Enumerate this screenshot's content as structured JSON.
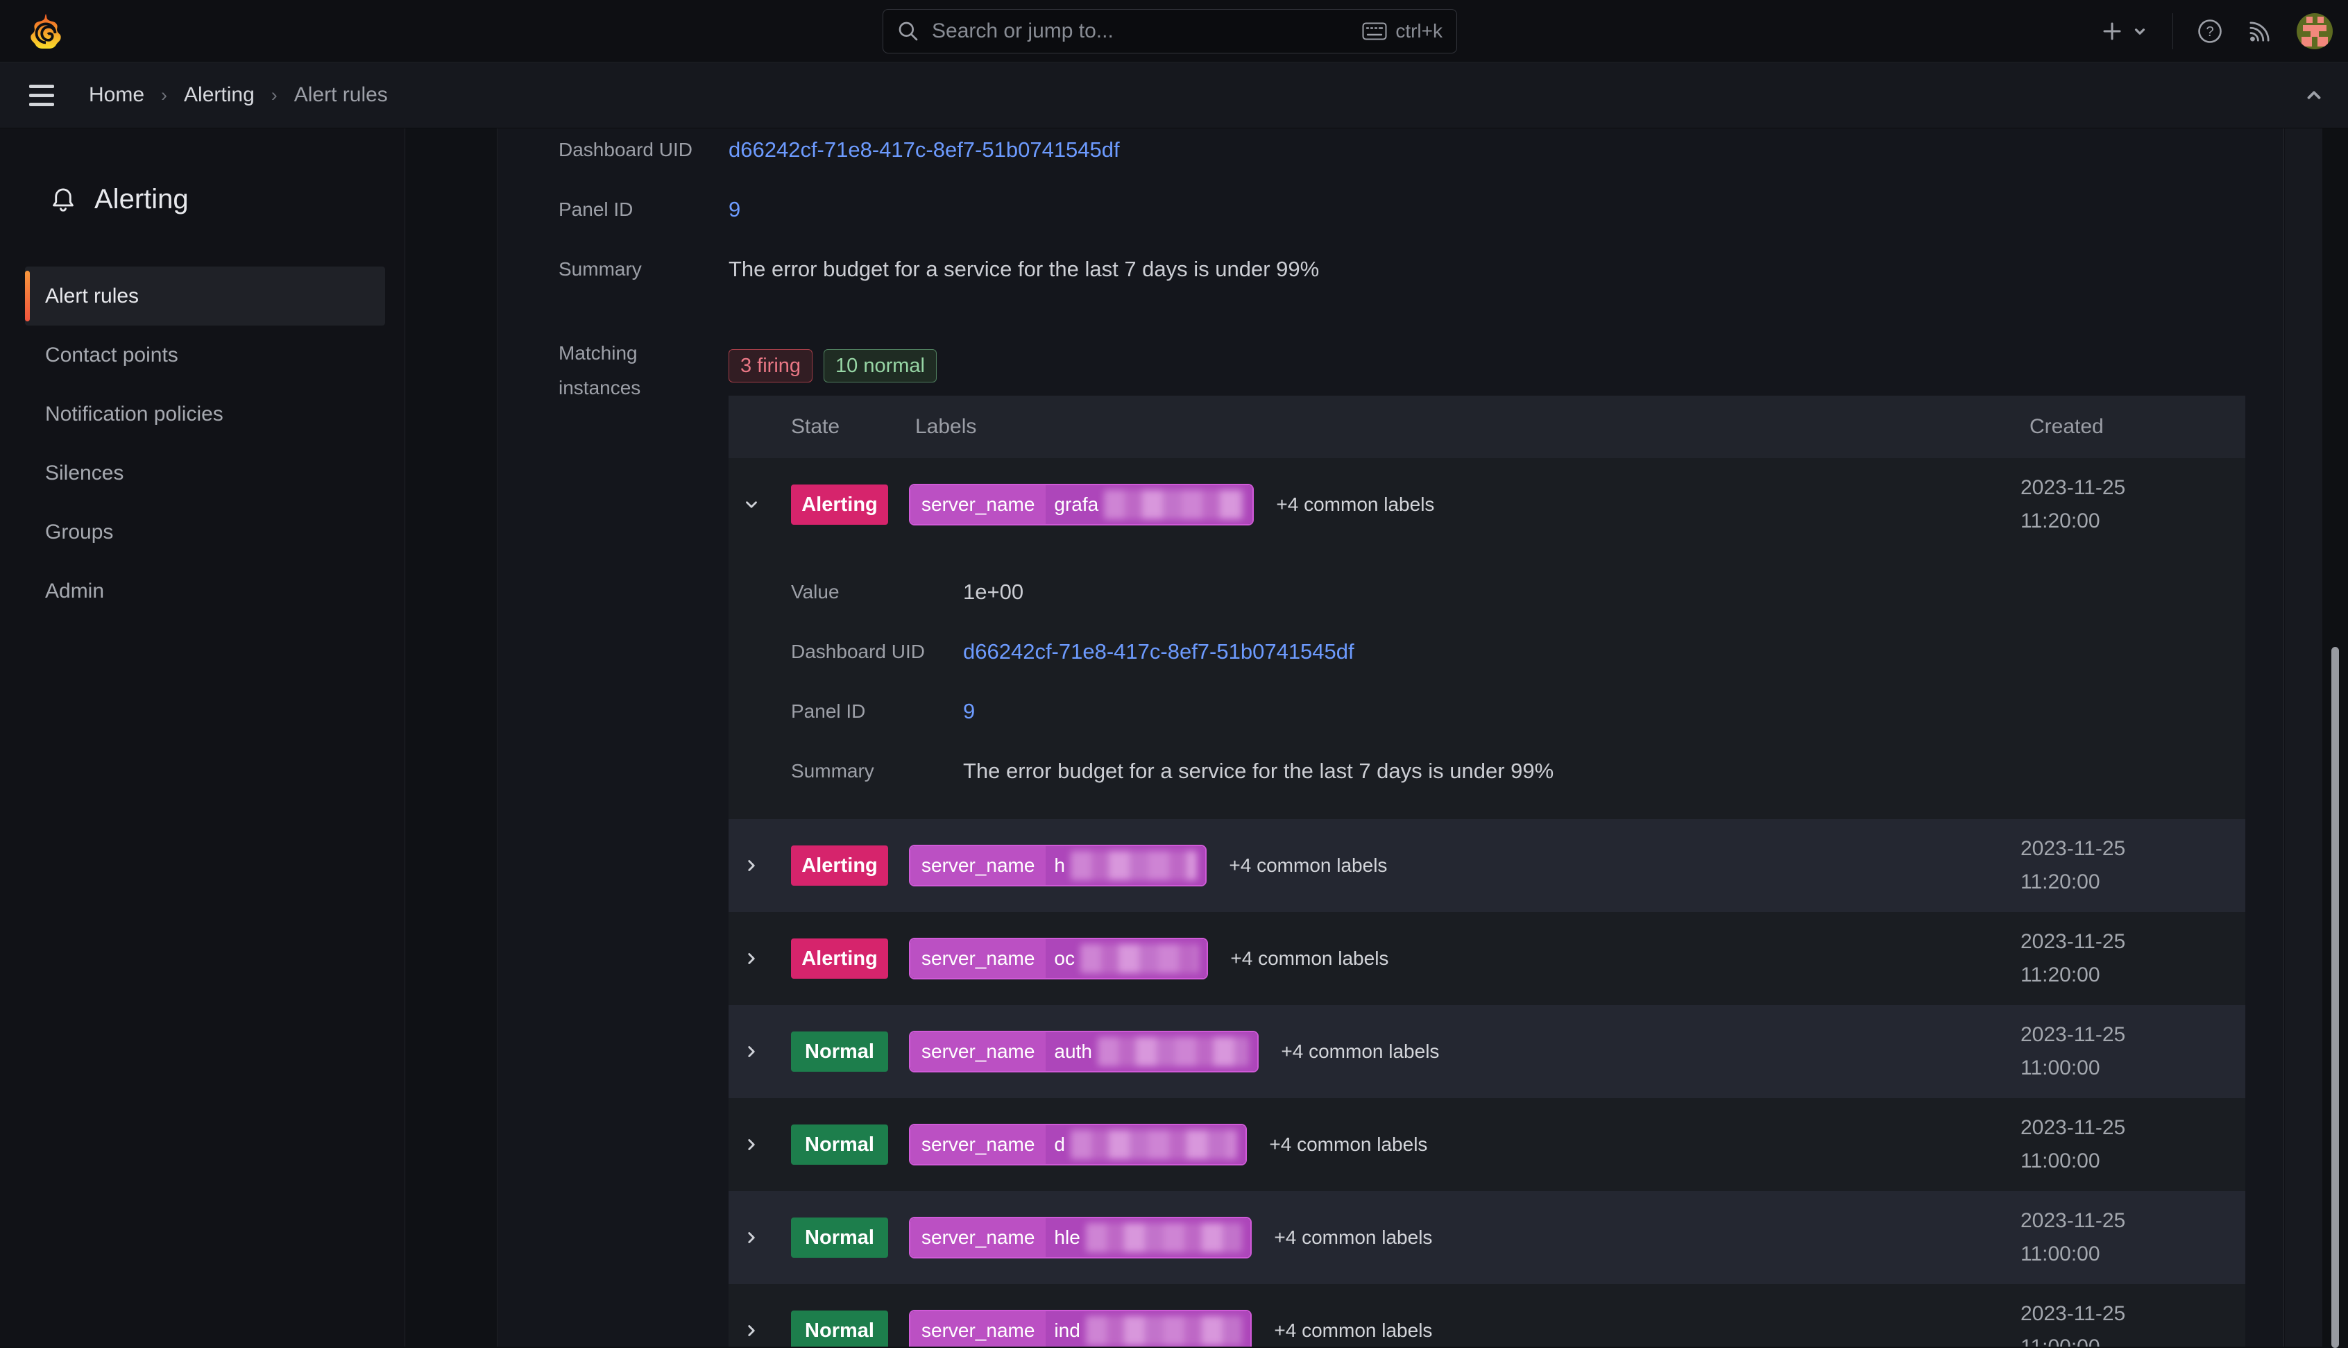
{
  "colors": {
    "accent_orange_top": "#F8973D",
    "accent_orange_bottom": "#F2543D",
    "link_blue": "#6D9BFF",
    "alerting_badge": "#D6246C",
    "normal_badge": "#1D7E4C",
    "label_pill_border": "#D05AD8",
    "label_pill_key_bg": "#BB50C3",
    "label_pill_value_bg": "#AD46BA",
    "chip_firing_border": "#A43E48",
    "chip_firing_text": "#EA7785",
    "chip_normal_border": "#4F7F5E",
    "chip_normal_text": "#97D6A5"
  },
  "topnav": {
    "search": {
      "placeholder": "Search or jump to...",
      "shortcut": "ctrl+k"
    }
  },
  "breadcrumb": {
    "home": "Home",
    "section": "Alerting",
    "current": "Alert rules"
  },
  "sidebar": {
    "title": "Alerting",
    "items": [
      {
        "label": "Alert rules",
        "active": true
      },
      {
        "label": "Contact points",
        "active": false
      },
      {
        "label": "Notification policies",
        "active": false
      },
      {
        "label": "Silences",
        "active": false
      },
      {
        "label": "Groups",
        "active": false
      },
      {
        "label": "Admin",
        "active": false
      }
    ]
  },
  "rule_detail": {
    "fields": [
      {
        "label": "Dashboard UID",
        "value": "d66242cf-71e8-417c-8ef7-51b0741545df",
        "link": true
      },
      {
        "label": "Panel ID",
        "value": "9",
        "link": true
      },
      {
        "label": "Summary",
        "value": "The error budget for a service for the last 7 days is under 99%",
        "link": false
      }
    ],
    "matching_label_line1": "Matching",
    "matching_label_line2": "instances",
    "chips": [
      {
        "text": "3 firing",
        "kind": "firing"
      },
      {
        "text": "10 normal",
        "kind": "normal"
      }
    ]
  },
  "instances_table": {
    "headers": {
      "state": "State",
      "labels": "Labels",
      "created": "Created"
    },
    "rows": [
      {
        "state": "Alerting",
        "expanded": true,
        "label_key": "server_name",
        "label_prefix": "grafa",
        "value_width": 298,
        "common_labels": "+4 common labels",
        "created_date": "2023-11-25",
        "created_time": "11:20:00",
        "details": [
          {
            "label": "Value",
            "value": "1e+00",
            "link": false
          },
          {
            "label": "Dashboard UID",
            "value": "d66242cf-71e8-417c-8ef7-51b0741545df",
            "link": true
          },
          {
            "label": "Panel ID",
            "value": "9",
            "link": true
          },
          {
            "label": "Summary",
            "value": "The error budget for a service for the last 7 days is under 99%",
            "link": false
          }
        ]
      },
      {
        "state": "Alerting",
        "expanded": false,
        "label_key": "server_name",
        "label_prefix": "h",
        "value_width": 230,
        "common_labels": "+4 common labels",
        "created_date": "2023-11-25",
        "created_time": "11:20:00"
      },
      {
        "state": "Alerting",
        "expanded": false,
        "label_key": "server_name",
        "label_prefix": "oc",
        "value_width": 232,
        "common_labels": "+4 common labels",
        "created_date": "2023-11-25",
        "created_time": "11:20:00"
      },
      {
        "state": "Normal",
        "expanded": false,
        "label_key": "server_name",
        "label_prefix": "auth",
        "value_width": 305,
        "common_labels": "+4 common labels",
        "created_date": "2023-11-25",
        "created_time": "11:00:00"
      },
      {
        "state": "Normal",
        "expanded": false,
        "label_key": "server_name",
        "label_prefix": "d",
        "value_width": 288,
        "common_labels": "+4 common labels",
        "created_date": "2023-11-25",
        "created_time": "11:00:00"
      },
      {
        "state": "Normal",
        "expanded": false,
        "label_key": "server_name",
        "label_prefix": "hle",
        "value_width": 295,
        "common_labels": "+4 common labels",
        "created_date": "2023-11-25",
        "created_time": "11:00:00"
      },
      {
        "state": "Normal",
        "expanded": false,
        "label_key": "server_name",
        "label_prefix": "ind",
        "value_width": 295,
        "common_labels": "+4 common labels",
        "created_date": "2023-11-25",
        "created_time": "11:00:00"
      }
    ]
  }
}
